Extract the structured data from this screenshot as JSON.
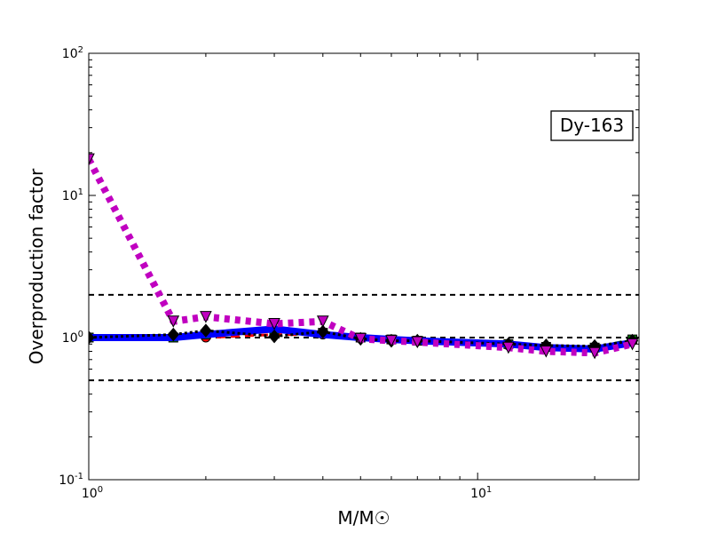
{
  "chart_data": {
    "type": "line",
    "x_scale": "log",
    "y_scale": "log",
    "xlim": [
      1,
      26
    ],
    "ylim": [
      0.1,
      100
    ],
    "xlabel": "M/M☉",
    "ylabel": "Overproduction factor",
    "annotation": "Dy-163",
    "legend": "none",
    "x_ticks": [
      {
        "value": 1,
        "base": "10",
        "exp": "0"
      },
      {
        "value": 10,
        "base": "10",
        "exp": "1"
      }
    ],
    "y_ticks": [
      {
        "value": 0.1,
        "base": "10",
        "exp": "-1"
      },
      {
        "value": 1,
        "base": "10",
        "exp": "0"
      },
      {
        "value": 10,
        "base": "10",
        "exp": "1"
      },
      {
        "value": 100,
        "base": "10",
        "exp": "2"
      }
    ],
    "reference_lines": [
      0.5,
      1.0,
      2.0
    ],
    "series": [
      {
        "color": "#ff0000",
        "dash": "10,6",
        "width": 3,
        "marker": "circle",
        "x": [
          1.0,
          1.65,
          2.0,
          3.0,
          4.0,
          5.0,
          6.0,
          7.0,
          12.0,
          15.0,
          20.0,
          25.0
        ],
        "y": [
          1.0,
          1.0,
          1.0,
          1.05,
          1.05,
          1.0,
          0.97,
          0.95,
          0.88,
          0.85,
          0.85,
          0.95
        ]
      },
      {
        "color": "#008000",
        "dash": "10,6",
        "width": 3,
        "marker": "square",
        "x": [
          1.0,
          1.65,
          2.0,
          3.0,
          4.0,
          5.0,
          6.0,
          7.0,
          12.0,
          15.0,
          20.0,
          25.0
        ],
        "y": [
          1.0,
          1.0,
          1.05,
          1.12,
          1.08,
          1.0,
          0.97,
          0.95,
          0.9,
          0.86,
          0.85,
          0.97
        ]
      },
      {
        "color": "#0000ff",
        "dash": "none",
        "width": 8,
        "marker": "none",
        "x": [
          1.0,
          1.65,
          2.0,
          3.0,
          4.0,
          5.0,
          6.0,
          7.0,
          12.0,
          15.0,
          20.0,
          25.0
        ],
        "y": [
          1.0,
          1.0,
          1.05,
          1.15,
          1.05,
          1.0,
          0.97,
          0.95,
          0.9,
          0.85,
          0.83,
          0.92
        ]
      },
      {
        "color": "#000000",
        "dash": "3,3",
        "width": 3,
        "marker": "diamond",
        "x": [
          1.0,
          1.65,
          2.0,
          3.0,
          4.0,
          5.0,
          6.0,
          7.0,
          12.0,
          15.0,
          20.0,
          25.0
        ],
        "y": [
          1.0,
          1.05,
          1.12,
          1.02,
          1.1,
          0.98,
          0.95,
          0.95,
          0.9,
          0.88,
          0.87,
          0.95
        ]
      },
      {
        "color": "#c000c0",
        "dash": "6,6",
        "width": 8,
        "marker": "triangle-down",
        "x": [
          1.0,
          1.65,
          2.0,
          3.0,
          4.0,
          5.0,
          6.0,
          7.0,
          12.0,
          15.0,
          20.0,
          25.0
        ],
        "y": [
          18.0,
          1.3,
          1.4,
          1.25,
          1.3,
          0.98,
          0.95,
          0.93,
          0.85,
          0.8,
          0.78,
          0.9
        ]
      }
    ]
  }
}
